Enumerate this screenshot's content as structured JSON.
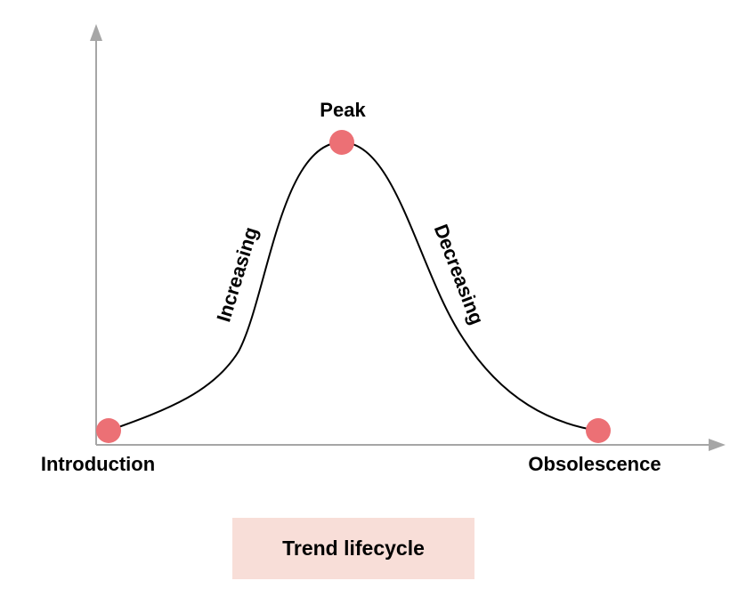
{
  "diagram": {
    "title": "Trend lifecycle",
    "stages": {
      "start": "Introduction",
      "rise": "Increasing",
      "top": "Peak",
      "fall": "Decreasing",
      "end": "Obsolescence"
    }
  },
  "colors": {
    "axis": "#a6a6a6",
    "curve": "#000000",
    "marker": "#ec7075",
    "caption_background": "#f8ded8"
  }
}
